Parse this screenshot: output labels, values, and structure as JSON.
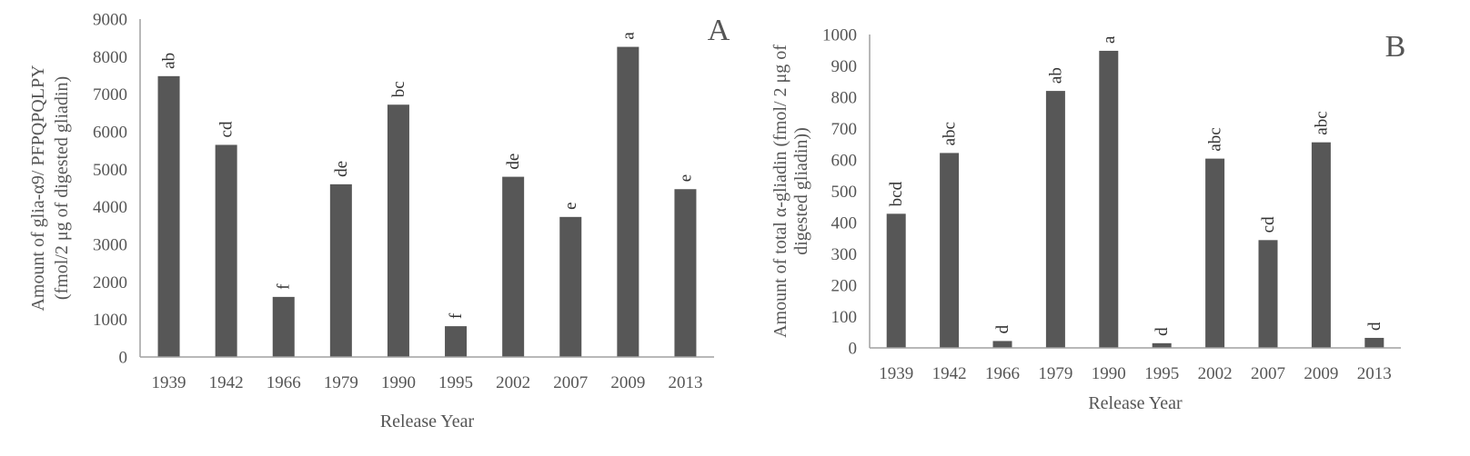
{
  "chart_data": [
    {
      "type": "bar",
      "panel_label": "A",
      "categories": [
        "1939",
        "1942",
        "1966",
        "1979",
        "1990",
        "1995",
        "2002",
        "2007",
        "2009",
        "2013"
      ],
      "values": [
        7480,
        5650,
        1600,
        4600,
        6720,
        820,
        4800,
        3730,
        8260,
        4470
      ],
      "significance_letters": [
        "ab",
        "cd",
        "f",
        "de",
        "bc",
        "f",
        "de",
        "e",
        "a",
        "e"
      ],
      "ylabel_lines": [
        "Amount of glia-α9/ PFPQPQLPY",
        "(fmol/2 μg of digested gliadin)"
      ],
      "xlabel": "Release Year",
      "ylim": [
        0,
        9000
      ],
      "yticks": [
        0,
        1000,
        2000,
        3000,
        4000,
        5000,
        6000,
        7000,
        8000,
        9000
      ],
      "bar_color": "#575757",
      "grid": false,
      "legend": "none"
    },
    {
      "type": "bar",
      "panel_label": "B",
      "categories": [
        "1939",
        "1942",
        "1966",
        "1979",
        "1990",
        "1995",
        "2002",
        "2007",
        "2009",
        "2013"
      ],
      "values": [
        428,
        622,
        22,
        820,
        948,
        15,
        604,
        344,
        656,
        32
      ],
      "significance_letters": [
        "bcd",
        "abc",
        "d",
        "ab",
        "a",
        "d",
        "abc",
        "cd",
        "abc",
        "d"
      ],
      "ylabel_lines": [
        "Amount of total α-gliadin (fmol/ 2 μg of",
        "digested gliadin))"
      ],
      "xlabel": "Release Year",
      "ylim": [
        0,
        1000
      ],
      "yticks": [
        0,
        100,
        200,
        300,
        400,
        500,
        600,
        700,
        800,
        900,
        1000
      ],
      "bar_color": "#575757",
      "grid": false,
      "legend": "none"
    }
  ]
}
